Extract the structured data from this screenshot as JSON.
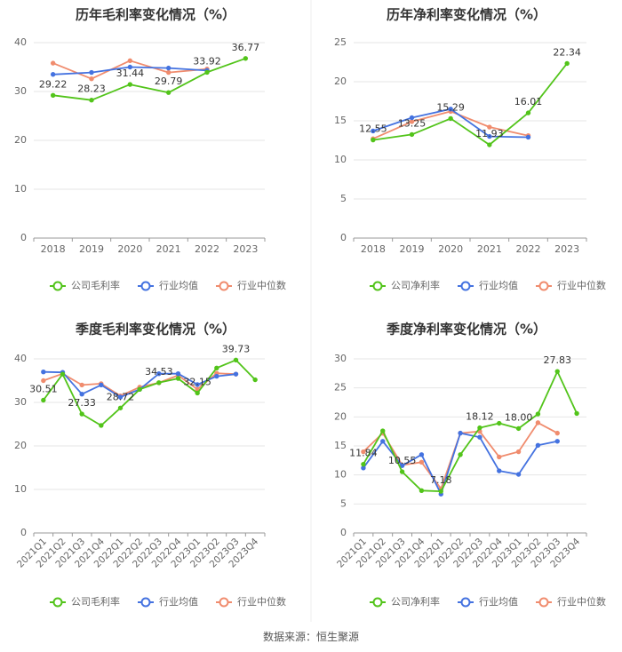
{
  "source": "数据来源：恒生聚源",
  "colors": {
    "company": "#52c41a",
    "industry_avg": "#4472e0",
    "industry_median": "#f08c6e",
    "grid": "#e6e6e6",
    "axis": "#999999",
    "text": "#666666",
    "title": "#333333",
    "label": "#333333",
    "divider": "#eeeeee"
  },
  "chart_data": [
    {
      "id": "annual-gross",
      "type": "line",
      "title": "历年毛利率变化情况（%）",
      "categories": [
        "2018",
        "2019",
        "2020",
        "2021",
        "2022",
        "2023"
      ],
      "ylim": [
        0,
        40
      ],
      "yticks": [
        0,
        10,
        20,
        30,
        40
      ],
      "xlabel_rotate": false,
      "series": [
        {
          "key": "company",
          "name": "公司毛利率",
          "values": [
            29.22,
            28.23,
            31.44,
            29.79,
            33.92,
            36.77
          ]
        },
        {
          "key": "industry_avg",
          "name": "行业均值",
          "values": [
            33.5,
            33.9,
            35.0,
            34.8,
            34.3,
            null
          ]
        },
        {
          "key": "industry_median",
          "name": "行业中位数",
          "values": [
            35.8,
            32.6,
            36.3,
            33.9,
            34.6,
            null
          ]
        }
      ],
      "labels": [
        {
          "cat": 0,
          "value": 29.22,
          "text": "29.22",
          "pos": "top"
        },
        {
          "cat": 1,
          "value": 28.23,
          "text": "28.23",
          "pos": "top"
        },
        {
          "cat": 2,
          "value": 31.44,
          "text": "31.44",
          "pos": "top"
        },
        {
          "cat": 3,
          "value": 29.79,
          "text": "29.79",
          "pos": "top"
        },
        {
          "cat": 4,
          "value": 33.92,
          "text": "33.92",
          "pos": "top"
        },
        {
          "cat": 5,
          "value": 36.77,
          "text": "36.77",
          "pos": "top"
        }
      ]
    },
    {
      "id": "annual-net",
      "type": "line",
      "title": "历年净利率变化情况（%）",
      "categories": [
        "2018",
        "2019",
        "2020",
        "2021",
        "2022",
        "2023"
      ],
      "ylim": [
        0,
        25
      ],
      "yticks": [
        0,
        5,
        10,
        15,
        20,
        25
      ],
      "xlabel_rotate": false,
      "series": [
        {
          "key": "company",
          "name": "公司净利率",
          "values": [
            12.55,
            13.25,
            15.29,
            11.93,
            16.01,
            22.34
          ]
        },
        {
          "key": "industry_avg",
          "name": "行业均值",
          "values": [
            13.7,
            15.4,
            16.5,
            13.0,
            12.9,
            null
          ]
        },
        {
          "key": "industry_median",
          "name": "行业中位数",
          "values": [
            12.7,
            14.9,
            16.2,
            14.2,
            13.1,
            null
          ]
        }
      ],
      "labels": [
        {
          "cat": 0,
          "value": 12.55,
          "text": "12.55",
          "pos": "top"
        },
        {
          "cat": 1,
          "value": 13.25,
          "text": "13.25",
          "pos": "top"
        },
        {
          "cat": 2,
          "value": 15.29,
          "text": "15.29",
          "pos": "top"
        },
        {
          "cat": 3,
          "value": 11.93,
          "text": "11.93",
          "pos": "top"
        },
        {
          "cat": 4,
          "value": 16.01,
          "text": "16.01",
          "pos": "top"
        },
        {
          "cat": 5,
          "value": 22.34,
          "text": "22.34",
          "pos": "top"
        }
      ]
    },
    {
      "id": "quarter-gross",
      "type": "line",
      "title": "季度毛利率变化情况（%）",
      "categories": [
        "2021Q1",
        "2021Q2",
        "2021Q3",
        "2021Q4",
        "2022Q1",
        "2022Q2",
        "2022Q3",
        "2022Q4",
        "2023Q1",
        "2023Q2",
        "2023Q3",
        "2023Q4"
      ],
      "ylim": [
        0,
        40
      ],
      "yticks": [
        0,
        10,
        20,
        30,
        40
      ],
      "xlabel_rotate": true,
      "series": [
        {
          "key": "company",
          "name": "公司毛利率",
          "values": [
            30.51,
            36.5,
            27.33,
            24.7,
            28.72,
            33.0,
            34.53,
            35.5,
            32.15,
            37.9,
            39.73,
            35.2
          ]
        },
        {
          "key": "industry_avg",
          "name": "行业均值",
          "values": [
            37.0,
            36.9,
            31.9,
            34.0,
            31.2,
            33.0,
            36.6,
            36.6,
            34.1,
            36.0,
            36.5,
            null
          ]
        },
        {
          "key": "industry_median",
          "name": "行业中位数",
          "values": [
            35.0,
            36.6,
            34.0,
            34.3,
            31.5,
            33.5,
            34.5,
            36.2,
            33.0,
            36.7,
            36.5,
            null
          ]
        }
      ],
      "labels": [
        {
          "cat": 0,
          "value": 30.51,
          "text": "30.51",
          "pos": "top"
        },
        {
          "cat": 2,
          "value": 27.33,
          "text": "27.33",
          "pos": "top"
        },
        {
          "cat": 4,
          "value": 28.72,
          "text": "28.72",
          "pos": "top"
        },
        {
          "cat": 6,
          "value": 34.53,
          "text": "34.53",
          "pos": "top"
        },
        {
          "cat": 8,
          "value": 32.15,
          "text": "32.15",
          "pos": "top"
        },
        {
          "cat": 10,
          "value": 39.73,
          "text": "39.73",
          "pos": "top"
        }
      ]
    },
    {
      "id": "quarter-net",
      "type": "line",
      "title": "季度净利率变化情况（%）",
      "categories": [
        "2021Q1",
        "2021Q2",
        "2021Q3",
        "2021Q4",
        "2022Q1",
        "2022Q2",
        "2022Q3",
        "2022Q4",
        "2023Q1",
        "2023Q2",
        "2023Q3",
        "2023Q4"
      ],
      "ylim": [
        0,
        30
      ],
      "yticks": [
        0,
        5,
        10,
        15,
        20,
        25,
        30
      ],
      "xlabel_rotate": true,
      "series": [
        {
          "key": "company",
          "name": "公司净利率",
          "values": [
            11.84,
            17.6,
            10.55,
            7.3,
            7.18,
            13.5,
            18.12,
            18.9,
            18.0,
            20.5,
            27.83,
            20.6
          ]
        },
        {
          "key": "industry_avg",
          "name": "行业均值",
          "values": [
            11.2,
            15.8,
            11.6,
            13.5,
            6.7,
            17.2,
            16.5,
            10.7,
            10.1,
            15.1,
            15.8,
            null
          ]
        },
        {
          "key": "industry_median",
          "name": "行业中位数",
          "values": [
            14.0,
            17.2,
            11.7,
            12.2,
            7.6,
            17.2,
            17.5,
            13.1,
            14.0,
            19.0,
            17.2,
            null
          ]
        }
      ],
      "labels": [
        {
          "cat": 0,
          "value": 11.84,
          "text": "11.84",
          "pos": "top"
        },
        {
          "cat": 2,
          "value": 10.55,
          "text": "10.55",
          "pos": "top"
        },
        {
          "cat": 4,
          "value": 7.18,
          "text": "7.18",
          "pos": "top"
        },
        {
          "cat": 6,
          "value": 18.12,
          "text": "18.12",
          "pos": "top"
        },
        {
          "cat": 8,
          "value": 18.0,
          "text": "18.00",
          "pos": "top"
        },
        {
          "cat": 10,
          "value": 27.83,
          "text": "27.83",
          "pos": "top"
        }
      ]
    }
  ]
}
